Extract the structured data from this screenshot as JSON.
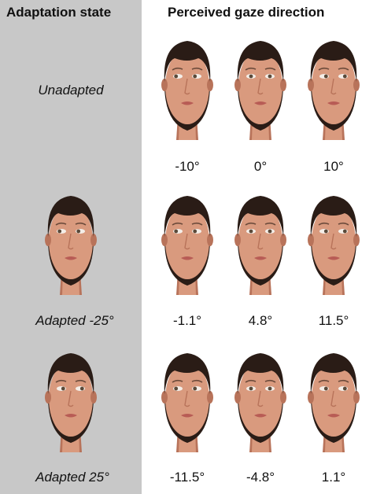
{
  "headers": {
    "left": "Adaptation state",
    "right": "Perceived gaze direction"
  },
  "rows": [
    {
      "state": "Unadapted",
      "has_adaptor": false,
      "adaptor_gaze": "none",
      "perceived": [
        "-10°",
        "0°",
        "10°"
      ]
    },
    {
      "state": "Adapted -25°",
      "has_adaptor": true,
      "adaptor_gaze": "left",
      "perceived": [
        "-1.1°",
        "4.8°",
        "11.5°"
      ]
    },
    {
      "state": "Adapted 25°",
      "has_adaptor": true,
      "adaptor_gaze": "right",
      "perceived": [
        "-11.5°",
        "-4.8°",
        "1.1°"
      ]
    }
  ],
  "test_face_gaze": [
    "left",
    "center",
    "right"
  ],
  "colors": {
    "panel": "#c8c8c8",
    "hair": "#2a1c16",
    "skin": "#d99a7e",
    "skin_shadow": "#b8735a",
    "lips": "#b85c55"
  }
}
